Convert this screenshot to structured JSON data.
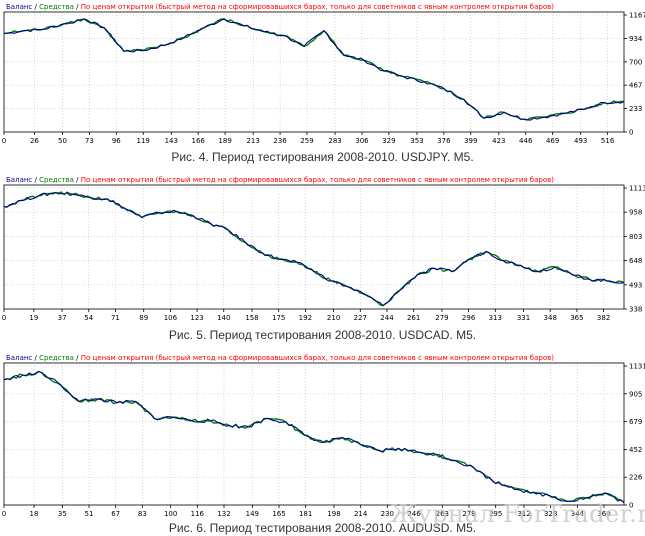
{
  "colors": {
    "balance": "#00008b",
    "equity": "#008000",
    "note": "#ff0000",
    "grid": "#c0c0c0",
    "axis": "#000000"
  },
  "legend": {
    "balance": "Баланс",
    "separator": "/",
    "equity": "Средства",
    "note": "По ценам открытия (быстрый метод на сформировавшихся барах, только для советников с явным контролем открытия баров)"
  },
  "chart_data": [
    {
      "type": "line",
      "caption": "Рис. 4. Период тестирования 2008-2010. USDJPY. M5.",
      "series": [
        {
          "name": "Баланс",
          "values": [
            1000,
            1030,
            1045,
            1100,
            1150,
            1060,
            820,
            830,
            880,
            960,
            1060,
            1150,
            1080,
            1020,
            980,
            870,
            1030,
            780,
            730,
            620,
            560,
            510,
            440,
            330,
            140,
            200,
            130,
            150,
            190,
            230,
            300,
            310
          ]
        },
        {
          "name": "Средства",
          "values": [
            1000,
            1030,
            1045,
            1100,
            1150,
            1060,
            820,
            830,
            880,
            960,
            1060,
            1150,
            1080,
            1020,
            980,
            870,
            1030,
            780,
            730,
            620,
            560,
            510,
            440,
            330,
            140,
            200,
            130,
            150,
            190,
            230,
            300,
            310
          ]
        }
      ],
      "xlim": [
        0,
        530
      ],
      "ylim": [
        0,
        1220
      ],
      "x_ticks": [
        0,
        26,
        50,
        73,
        96,
        119,
        143,
        166,
        189,
        213,
        236,
        259,
        283,
        306,
        329,
        353,
        376,
        399,
        423,
        446,
        469,
        493,
        516
      ],
      "y_ticks": [
        "1167",
        "934",
        "700",
        "467",
        "233",
        "0"
      ],
      "grid": true
    },
    {
      "type": "line",
      "caption": "Рис. 5. Период тестирования 2008-2010. USDCAD. M5.",
      "series": [
        {
          "name": "Баланс",
          "values": [
            1000,
            1040,
            1070,
            1090,
            1080,
            1060,
            1050,
            990,
            930,
            960,
            970,
            940,
            890,
            850,
            770,
            700,
            660,
            640,
            580,
            520,
            480,
            430,
            360,
            460,
            560,
            600,
            580,
            660,
            710,
            650,
            620,
            580,
            610,
            560,
            530,
            520,
            510
          ]
        },
        {
          "name": "Средства",
          "values": [
            1000,
            1040,
            1070,
            1090,
            1080,
            1060,
            1050,
            990,
            930,
            960,
            970,
            940,
            890,
            850,
            770,
            700,
            660,
            640,
            580,
            520,
            480,
            430,
            360,
            460,
            560,
            600,
            580,
            660,
            710,
            650,
            620,
            580,
            610,
            560,
            530,
            520,
            510
          ]
        }
      ],
      "xlim": [
        0,
        395
      ],
      "ylim": [
        338,
        1140
      ],
      "x_ticks": [
        0,
        19,
        37,
        54,
        71,
        89,
        106,
        123,
        140,
        158,
        175,
        192,
        210,
        227,
        244,
        261,
        279,
        296,
        313,
        331,
        348,
        365,
        382
      ],
      "y_ticks": [
        "1113",
        "958",
        "803",
        "648",
        "493",
        "338"
      ],
      "grid": true
    },
    {
      "type": "line",
      "caption": "Рис. 6. Период тестирования 2008-2010. AUDUSD. M5.",
      "series": [
        {
          "name": "Баланс",
          "values": [
            1040,
            1080,
            1100,
            1000,
            860,
            880,
            850,
            860,
            720,
            730,
            700,
            700,
            660,
            650,
            720,
            690,
            580,
            520,
            560,
            500,
            450,
            470,
            440,
            420,
            370,
            310,
            200,
            150,
            100,
            80,
            30,
            60,
            100,
            20
          ]
        },
        {
          "name": "Средства",
          "values": [
            1040,
            1080,
            1100,
            1000,
            860,
            880,
            850,
            860,
            720,
            730,
            700,
            700,
            660,
            650,
            720,
            690,
            580,
            520,
            560,
            500,
            450,
            470,
            440,
            420,
            370,
            310,
            200,
            150,
            100,
            80,
            30,
            60,
            100,
            20
          ]
        }
      ],
      "xlim": [
        0,
        372
      ],
      "ylim": [
        0,
        1180
      ],
      "x_ticks": [
        0,
        18,
        35,
        51,
        67,
        83,
        100,
        116,
        132,
        149,
        165,
        181,
        198,
        214,
        230,
        246,
        263,
        279,
        295,
        312,
        328,
        344,
        360
      ],
      "y_ticks": [
        "1131",
        "905",
        "679",
        "452",
        "226",
        "0"
      ],
      "grid": true
    }
  ],
  "watermark": "Журнал ForTrader.ru"
}
